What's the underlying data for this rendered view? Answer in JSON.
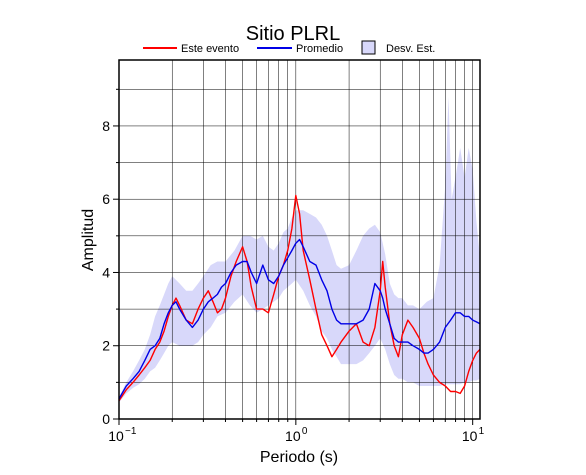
{
  "chart_data": {
    "type": "line",
    "title": "Sitio PLRL",
    "xlabel": "Periodo (s)",
    "ylabel": "Amplitud",
    "x_scale": "log",
    "xlim": [
      0.1,
      11
    ],
    "ylim": [
      0,
      9.8
    ],
    "grid": true,
    "legend_position": "top",
    "x_ticks": [
      {
        "value": 0.1,
        "base": "10",
        "exp": "−1"
      },
      {
        "value": 1,
        "label": "10",
        "exp": "0"
      },
      {
        "value": 10,
        "label": "10",
        "exp": "1"
      }
    ],
    "y_ticks": [
      0,
      2,
      4,
      6,
      8
    ],
    "legend": {
      "event_label": "Este evento",
      "mean_label": "Promedio",
      "std_label": "Desv. Est."
    },
    "colors": {
      "event": "#ff0000",
      "mean": "#0000e6",
      "std_fill": "#d8d8fa"
    },
    "series": [
      {
        "name": "Este evento",
        "color": "#ff0000",
        "points": [
          [
            0.1,
            0.5
          ],
          [
            0.11,
            0.8
          ],
          [
            0.12,
            1.0
          ],
          [
            0.13,
            1.2
          ],
          [
            0.14,
            1.4
          ],
          [
            0.15,
            1.6
          ],
          [
            0.16,
            1.9
          ],
          [
            0.17,
            2.1
          ],
          [
            0.18,
            2.4
          ],
          [
            0.19,
            2.8
          ],
          [
            0.2,
            3.1
          ],
          [
            0.21,
            3.3
          ],
          [
            0.22,
            3.1
          ],
          [
            0.24,
            2.7
          ],
          [
            0.26,
            2.6
          ],
          [
            0.28,
            3.0
          ],
          [
            0.3,
            3.3
          ],
          [
            0.32,
            3.5
          ],
          [
            0.34,
            3.2
          ],
          [
            0.36,
            2.9
          ],
          [
            0.38,
            3.0
          ],
          [
            0.4,
            3.3
          ],
          [
            0.43,
            3.9
          ],
          [
            0.46,
            4.3
          ],
          [
            0.5,
            4.7
          ],
          [
            0.53,
            4.3
          ],
          [
            0.56,
            3.6
          ],
          [
            0.6,
            3.0
          ],
          [
            0.65,
            3.0
          ],
          [
            0.7,
            2.9
          ],
          [
            0.75,
            3.4
          ],
          [
            0.8,
            3.9
          ],
          [
            0.85,
            4.2
          ],
          [
            0.9,
            4.6
          ],
          [
            0.95,
            5.2
          ],
          [
            1.0,
            6.1
          ],
          [
            1.05,
            5.6
          ],
          [
            1.1,
            4.6
          ],
          [
            1.2,
            3.8
          ],
          [
            1.3,
            3.0
          ],
          [
            1.4,
            2.3
          ],
          [
            1.5,
            2.0
          ],
          [
            1.6,
            1.7
          ],
          [
            1.7,
            1.9
          ],
          [
            1.8,
            2.1
          ],
          [
            2.0,
            2.4
          ],
          [
            2.2,
            2.6
          ],
          [
            2.4,
            2.1
          ],
          [
            2.6,
            2.0
          ],
          [
            2.8,
            2.5
          ],
          [
            3.0,
            3.5
          ],
          [
            3.1,
            4.3
          ],
          [
            3.2,
            3.6
          ],
          [
            3.4,
            2.6
          ],
          [
            3.6,
            2.0
          ],
          [
            3.8,
            1.7
          ],
          [
            4.0,
            2.3
          ],
          [
            4.3,
            2.7
          ],
          [
            4.6,
            2.5
          ],
          [
            5.0,
            2.2
          ],
          [
            5.3,
            1.8
          ],
          [
            5.6,
            1.5
          ],
          [
            6.0,
            1.2
          ],
          [
            6.5,
            1.0
          ],
          [
            7.0,
            0.9
          ],
          [
            7.5,
            0.75
          ],
          [
            8.0,
            0.75
          ],
          [
            8.5,
            0.7
          ],
          [
            9.0,
            0.9
          ],
          [
            9.5,
            1.3
          ],
          [
            10.0,
            1.6
          ],
          [
            10.5,
            1.8
          ],
          [
            11.0,
            1.9
          ]
        ]
      },
      {
        "name": "Promedio",
        "color": "#0000e6",
        "points": [
          [
            0.1,
            0.55
          ],
          [
            0.11,
            0.9
          ],
          [
            0.12,
            1.1
          ],
          [
            0.13,
            1.3
          ],
          [
            0.14,
            1.6
          ],
          [
            0.15,
            1.9
          ],
          [
            0.16,
            2.0
          ],
          [
            0.17,
            2.2
          ],
          [
            0.18,
            2.6
          ],
          [
            0.19,
            2.9
          ],
          [
            0.2,
            3.1
          ],
          [
            0.21,
            3.2
          ],
          [
            0.22,
            3.0
          ],
          [
            0.24,
            2.7
          ],
          [
            0.26,
            2.5
          ],
          [
            0.28,
            2.7
          ],
          [
            0.3,
            3.0
          ],
          [
            0.32,
            3.2
          ],
          [
            0.34,
            3.3
          ],
          [
            0.36,
            3.4
          ],
          [
            0.38,
            3.6
          ],
          [
            0.4,
            3.7
          ],
          [
            0.43,
            4.0
          ],
          [
            0.46,
            4.2
          ],
          [
            0.5,
            4.3
          ],
          [
            0.53,
            4.3
          ],
          [
            0.56,
            4.0
          ],
          [
            0.6,
            3.7
          ],
          [
            0.65,
            4.2
          ],
          [
            0.7,
            3.8
          ],
          [
            0.75,
            3.7
          ],
          [
            0.8,
            3.9
          ],
          [
            0.85,
            4.2
          ],
          [
            0.9,
            4.4
          ],
          [
            0.95,
            4.6
          ],
          [
            1.0,
            4.8
          ],
          [
            1.05,
            4.9
          ],
          [
            1.1,
            4.7
          ],
          [
            1.2,
            4.3
          ],
          [
            1.3,
            4.2
          ],
          [
            1.4,
            3.8
          ],
          [
            1.5,
            3.5
          ],
          [
            1.6,
            3.0
          ],
          [
            1.7,
            2.7
          ],
          [
            1.8,
            2.6
          ],
          [
            2.0,
            2.6
          ],
          [
            2.2,
            2.6
          ],
          [
            2.4,
            2.7
          ],
          [
            2.6,
            3.0
          ],
          [
            2.8,
            3.7
          ],
          [
            3.0,
            3.5
          ],
          [
            3.1,
            3.3
          ],
          [
            3.2,
            3.0
          ],
          [
            3.4,
            2.6
          ],
          [
            3.6,
            2.2
          ],
          [
            3.8,
            2.1
          ],
          [
            4.0,
            2.1
          ],
          [
            4.3,
            2.1
          ],
          [
            4.6,
            2.0
          ],
          [
            5.0,
            1.9
          ],
          [
            5.3,
            1.8
          ],
          [
            5.6,
            1.8
          ],
          [
            6.0,
            1.9
          ],
          [
            6.5,
            2.1
          ],
          [
            7.0,
            2.5
          ],
          [
            7.5,
            2.7
          ],
          [
            8.0,
            2.9
          ],
          [
            8.5,
            2.9
          ],
          [
            9.0,
            2.8
          ],
          [
            9.5,
            2.8
          ],
          [
            10.0,
            2.7
          ],
          [
            10.5,
            2.65
          ],
          [
            11.0,
            2.6
          ]
        ]
      }
    ],
    "band": {
      "name": "Desv. Est.",
      "upper": [
        [
          0.1,
          0.6
        ],
        [
          0.11,
          1.0
        ],
        [
          0.12,
          1.3
        ],
        [
          0.13,
          1.6
        ],
        [
          0.14,
          1.9
        ],
        [
          0.15,
          2.3
        ],
        [
          0.16,
          2.8
        ],
        [
          0.17,
          3.1
        ],
        [
          0.18,
          3.4
        ],
        [
          0.19,
          3.7
        ],
        [
          0.2,
          3.9
        ],
        [
          0.22,
          3.7
        ],
        [
          0.24,
          3.5
        ],
        [
          0.26,
          3.5
        ],
        [
          0.28,
          3.7
        ],
        [
          0.3,
          3.9
        ],
        [
          0.33,
          4.2
        ],
        [
          0.36,
          4.3
        ],
        [
          0.4,
          4.3
        ],
        [
          0.45,
          4.6
        ],
        [
          0.5,
          5.0
        ],
        [
          0.55,
          5.0
        ],
        [
          0.6,
          4.9
        ],
        [
          0.65,
          5.0
        ],
        [
          0.7,
          4.7
        ],
        [
          0.75,
          4.6
        ],
        [
          0.8,
          4.8
        ],
        [
          0.85,
          5.1
        ],
        [
          0.9,
          5.2
        ],
        [
          0.95,
          5.5
        ],
        [
          1.0,
          5.7
        ],
        [
          1.1,
          5.7
        ],
        [
          1.2,
          5.6
        ],
        [
          1.3,
          5.5
        ],
        [
          1.4,
          5.3
        ],
        [
          1.5,
          5.0
        ],
        [
          1.6,
          4.6
        ],
        [
          1.7,
          4.2
        ],
        [
          1.8,
          4.1
        ],
        [
          2.0,
          4.2
        ],
        [
          2.2,
          4.6
        ],
        [
          2.4,
          5.0
        ],
        [
          2.6,
          5.2
        ],
        [
          2.8,
          5.3
        ],
        [
          3.0,
          5.1
        ],
        [
          3.2,
          4.5
        ],
        [
          3.4,
          3.7
        ],
        [
          3.6,
          3.4
        ],
        [
          3.8,
          3.3
        ],
        [
          4.0,
          3.3
        ],
        [
          4.3,
          3.1
        ],
        [
          4.6,
          3.1
        ],
        [
          5.0,
          3.0
        ],
        [
          5.5,
          3.2
        ],
        [
          6.0,
          3.3
        ],
        [
          6.5,
          4.2
        ],
        [
          7.0,
          6.4
        ],
        [
          7.3,
          8.8
        ],
        [
          7.6,
          6.0
        ],
        [
          8.0,
          6.6
        ],
        [
          8.5,
          7.4
        ],
        [
          9.0,
          6.6
        ],
        [
          9.5,
          7.4
        ],
        [
          10.0,
          6.8
        ],
        [
          10.5,
          5.4
        ],
        [
          11.0,
          4.4
        ]
      ],
      "lower": [
        [
          0.1,
          0.45
        ],
        [
          0.11,
          0.7
        ],
        [
          0.12,
          0.85
        ],
        [
          0.13,
          0.95
        ],
        [
          0.14,
          1.1
        ],
        [
          0.15,
          1.3
        ],
        [
          0.16,
          1.4
        ],
        [
          0.17,
          1.6
        ],
        [
          0.18,
          1.8
        ],
        [
          0.19,
          2.0
        ],
        [
          0.2,
          2.1
        ],
        [
          0.22,
          2.0
        ],
        [
          0.24,
          2.0
        ],
        [
          0.26,
          2.0
        ],
        [
          0.28,
          2.1
        ],
        [
          0.3,
          2.3
        ],
        [
          0.33,
          2.5
        ],
        [
          0.36,
          2.8
        ],
        [
          0.4,
          2.9
        ],
        [
          0.45,
          3.2
        ],
        [
          0.5,
          3.4
        ],
        [
          0.55,
          3.1
        ],
        [
          0.6,
          2.9
        ],
        [
          0.65,
          3.0
        ],
        [
          0.7,
          3.1
        ],
        [
          0.75,
          3.2
        ],
        [
          0.8,
          3.3
        ],
        [
          0.85,
          3.5
        ],
        [
          0.9,
          3.6
        ],
        [
          0.95,
          3.7
        ],
        [
          1.0,
          3.8
        ],
        [
          1.1,
          3.5
        ],
        [
          1.2,
          3.1
        ],
        [
          1.3,
          2.8
        ],
        [
          1.4,
          2.4
        ],
        [
          1.5,
          2.2
        ],
        [
          1.6,
          1.9
        ],
        [
          1.7,
          1.7
        ],
        [
          1.8,
          1.5
        ],
        [
          2.0,
          1.5
        ],
        [
          2.2,
          1.5
        ],
        [
          2.4,
          1.6
        ],
        [
          2.6,
          1.8
        ],
        [
          2.8,
          2.0
        ],
        [
          3.0,
          2.2
        ],
        [
          3.2,
          1.9
        ],
        [
          3.4,
          1.5
        ],
        [
          3.6,
          1.2
        ],
        [
          3.8,
          1.1
        ],
        [
          4.0,
          1.1
        ],
        [
          4.3,
          1.0
        ],
        [
          4.6,
          1.0
        ],
        [
          5.0,
          0.9
        ],
        [
          5.5,
          0.9
        ],
        [
          6.0,
          0.9
        ],
        [
          6.5,
          0.9
        ],
        [
          7.0,
          0.95
        ],
        [
          7.5,
          0.95
        ],
        [
          8.0,
          0.95
        ],
        [
          8.5,
          0.95
        ],
        [
          9.0,
          1.0
        ],
        [
          9.5,
          1.0
        ],
        [
          10.0,
          1.05
        ],
        [
          10.5,
          1.05
        ],
        [
          11.0,
          1.1
        ]
      ]
    }
  }
}
